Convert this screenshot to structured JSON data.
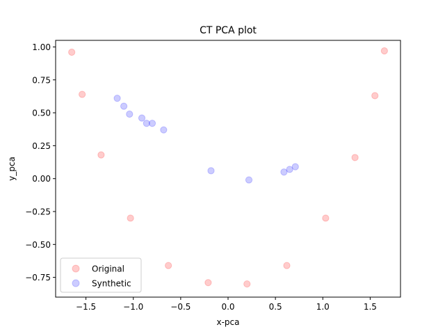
{
  "chart_data": {
    "type": "scatter",
    "title": "CT PCA plot",
    "xlabel": "x-pca",
    "ylabel": "y_pca",
    "xlim": [
      -1.82,
      1.82
    ],
    "ylim": [
      -0.9,
      1.05
    ],
    "xticks": [
      -1.5,
      -1.0,
      -0.5,
      0.0,
      0.5,
      1.0,
      1.5
    ],
    "xtick_labels": [
      "−1.5",
      "−1.0",
      "−0.5",
      "0.0",
      "0.5",
      "1.0",
      "1.5"
    ],
    "yticks": [
      -0.75,
      -0.5,
      -0.25,
      0.0,
      0.25,
      0.5,
      0.75,
      1.0
    ],
    "ytick_labels": [
      "−0.75",
      "−0.50",
      "−0.25",
      "0.00",
      "0.25",
      "0.50",
      "0.75",
      "1.00"
    ],
    "grid": false,
    "legend_position": "lower-left",
    "series": [
      {
        "name": "Original",
        "color": "#ff0000",
        "alpha": 0.2,
        "points": [
          [
            -1.65,
            0.96
          ],
          [
            -1.54,
            0.64
          ],
          [
            -1.34,
            0.18
          ],
          [
            -1.03,
            -0.3
          ],
          [
            -0.63,
            -0.66
          ],
          [
            -0.21,
            -0.79
          ],
          [
            0.2,
            -0.8
          ],
          [
            0.62,
            -0.66
          ],
          [
            1.03,
            -0.3
          ],
          [
            1.34,
            0.16
          ],
          [
            1.55,
            0.63
          ],
          [
            1.65,
            0.97
          ]
        ]
      },
      {
        "name": "Synthetic",
        "color": "#0000ff",
        "alpha": 0.2,
        "points": [
          [
            -1.17,
            0.61
          ],
          [
            -1.1,
            0.55
          ],
          [
            -1.04,
            0.49
          ],
          [
            -0.91,
            0.46
          ],
          [
            -0.86,
            0.42
          ],
          [
            -0.8,
            0.42
          ],
          [
            -0.68,
            0.37
          ],
          [
            -0.18,
            0.06
          ],
          [
            0.22,
            -0.01
          ],
          [
            0.59,
            0.05
          ],
          [
            0.65,
            0.07
          ],
          [
            0.71,
            0.09
          ]
        ]
      }
    ]
  }
}
